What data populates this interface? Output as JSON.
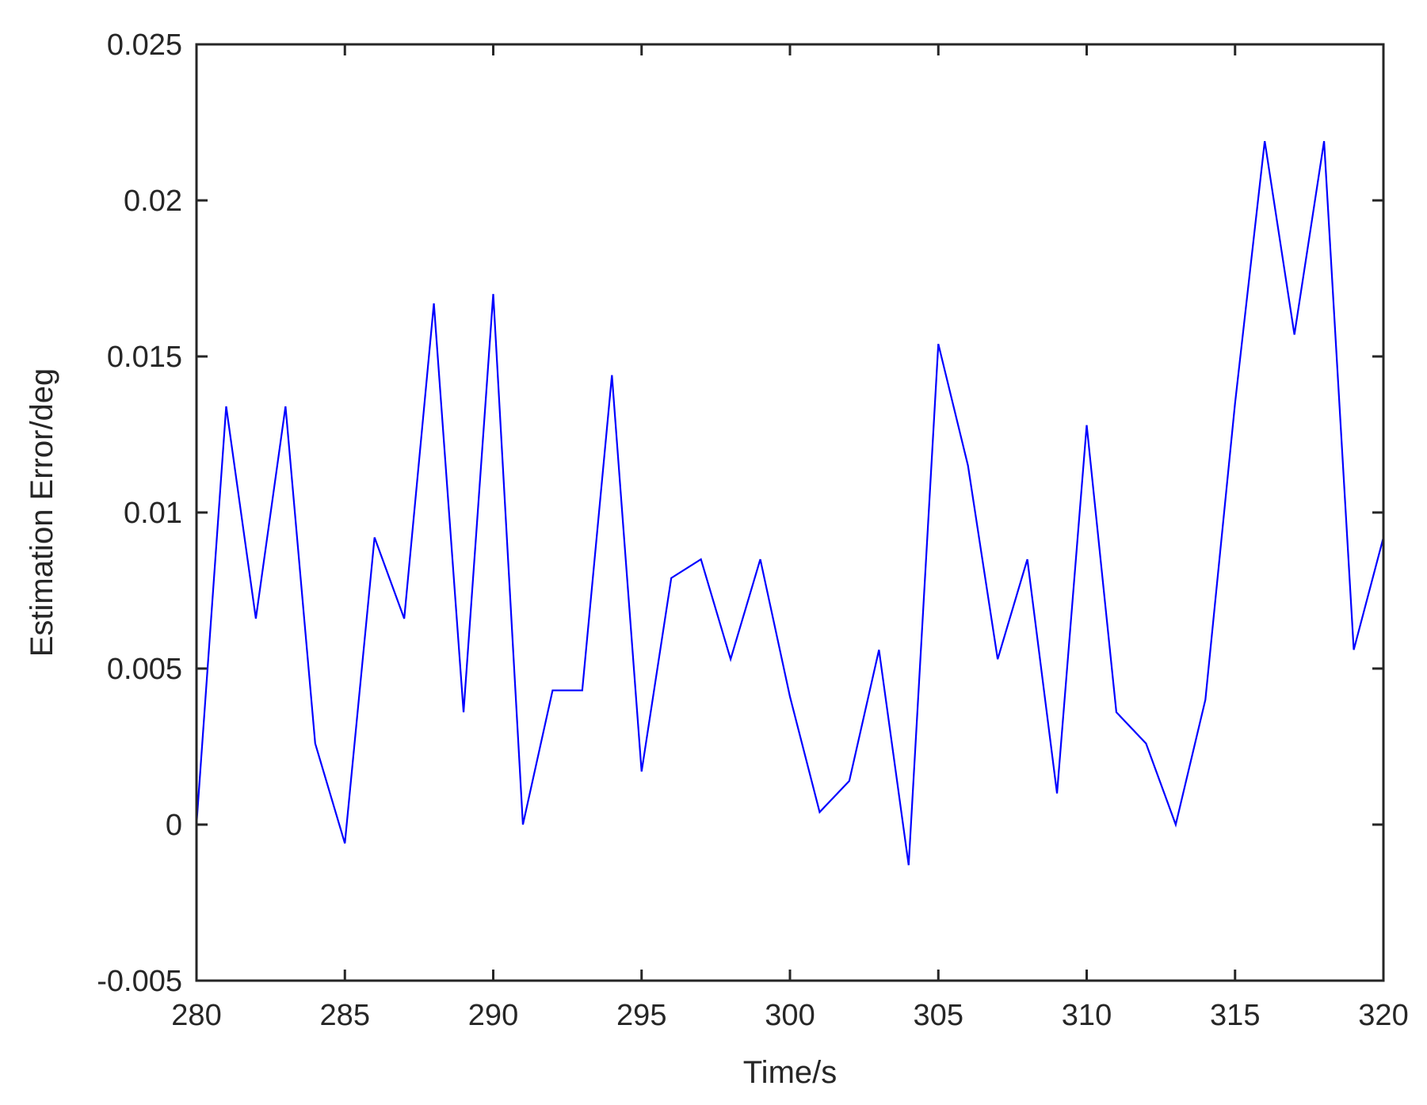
{
  "chart_data": {
    "type": "line",
    "title": "",
    "xlabel": "Time/s",
    "ylabel": "Estimation Error/deg",
    "xlim": [
      280,
      320
    ],
    "ylim": [
      -0.005,
      0.025
    ],
    "xticks": [
      280,
      285,
      290,
      295,
      300,
      305,
      310,
      315,
      320
    ],
    "xtick_labels": [
      "280",
      "285",
      "290",
      "295",
      "300",
      "305",
      "310",
      "315",
      "320"
    ],
    "yticks": [
      -0.005,
      0,
      0.005,
      0.01,
      0.015,
      0.02,
      0.025
    ],
    "ytick_labels": [
      "-0.005",
      "0",
      "0.005",
      "0.01",
      "0.015",
      "0.02",
      "0.025"
    ],
    "grid": false,
    "legend": "none",
    "colors": {
      "series": "#0000ff",
      "axes": "#262626",
      "background": "#ffffff"
    },
    "series": [
      {
        "x": [
          280,
          281,
          282,
          283,
          284,
          285,
          286,
          287,
          288,
          289,
          290,
          291,
          292,
          293,
          294,
          295,
          296,
          297,
          298,
          299,
          300,
          301,
          302,
          303,
          304,
          305,
          306,
          307,
          308,
          309,
          310,
          311,
          312,
          313,
          314,
          315,
          316,
          317,
          318,
          319,
          320
        ],
        "y": [
          0.0,
          0.0134,
          0.0066,
          0.0134,
          0.0026,
          -0.0006,
          0.0092,
          0.0066,
          0.0167,
          0.0036,
          0.017,
          0.0,
          0.0043,
          0.0043,
          0.0144,
          0.0017,
          0.0079,
          0.0085,
          0.0053,
          0.0085,
          0.0041,
          0.0004,
          0.0014,
          0.0056,
          -0.0013,
          0.0154,
          0.0115,
          0.0053,
          0.0085,
          0.001,
          0.0128,
          0.0036,
          0.0026,
          0.0,
          0.004,
          0.0135,
          0.0219,
          0.0157,
          0.0219,
          0.0056,
          0.0092
        ]
      }
    ]
  }
}
